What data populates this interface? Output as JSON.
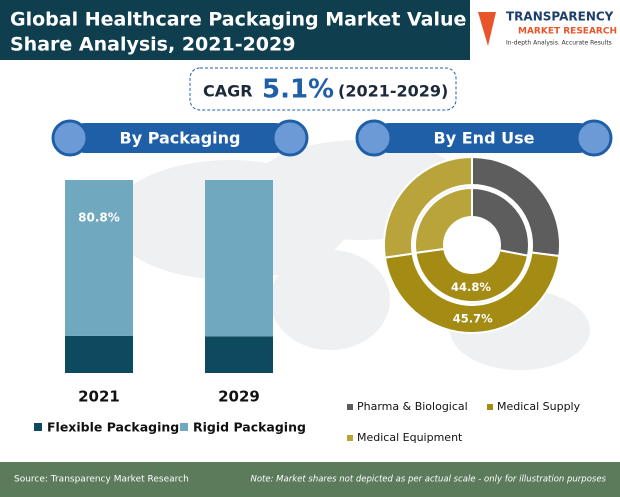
{
  "header": {
    "title_line1": "Global Healthcare Packaging Market Value",
    "title_line2": "Share Analysis, 2021-2029"
  },
  "logo": {
    "name": "TRANSPARENCY",
    "subname": "MARKET RESEARCH",
    "tagline": "In-depth Analysis. Accurate Results"
  },
  "cagr": {
    "label": "CAGR",
    "value": "5.1%",
    "period": "(2021-2029)"
  },
  "chart_data": [
    {
      "type": "stacked_bar",
      "title": "By Packaging",
      "categories": [
        "2021",
        "2029"
      ],
      "ylim": [
        0,
        100
      ],
      "series": [
        {
          "name": "Flexible Packaging",
          "color": "#0e4a5f",
          "values": [
            19.2,
            19.0
          ]
        },
        {
          "name": "Rigid Packaging",
          "color": "#6fa8bf",
          "values": [
            80.8,
            81.0
          ],
          "value_labels": [
            "80.8%",
            null
          ]
        }
      ],
      "legend": "bottom"
    },
    {
      "type": "donut",
      "title": "By End Use",
      "categories": [
        "Pharma & Biological",
        "Medical Supply",
        "Medical Equipment"
      ],
      "colors": [
        "#5d5d5d",
        "#a48b14",
        "#b9a43c"
      ],
      "rings": [
        {
          "values": [
            28.0,
            44.8,
            27.2
          ],
          "value_labels": [
            null,
            "44.8%",
            null
          ]
        },
        {
          "values": [
            27.0,
            45.7,
            27.3
          ],
          "value_labels": [
            null,
            "45.7%",
            null
          ]
        }
      ],
      "legend": "bottom"
    }
  ],
  "footer": {
    "source": "Source: Transparency Market Research",
    "note": "Note: Market shares not depicted as per actual scale - only for illustration purposes"
  }
}
